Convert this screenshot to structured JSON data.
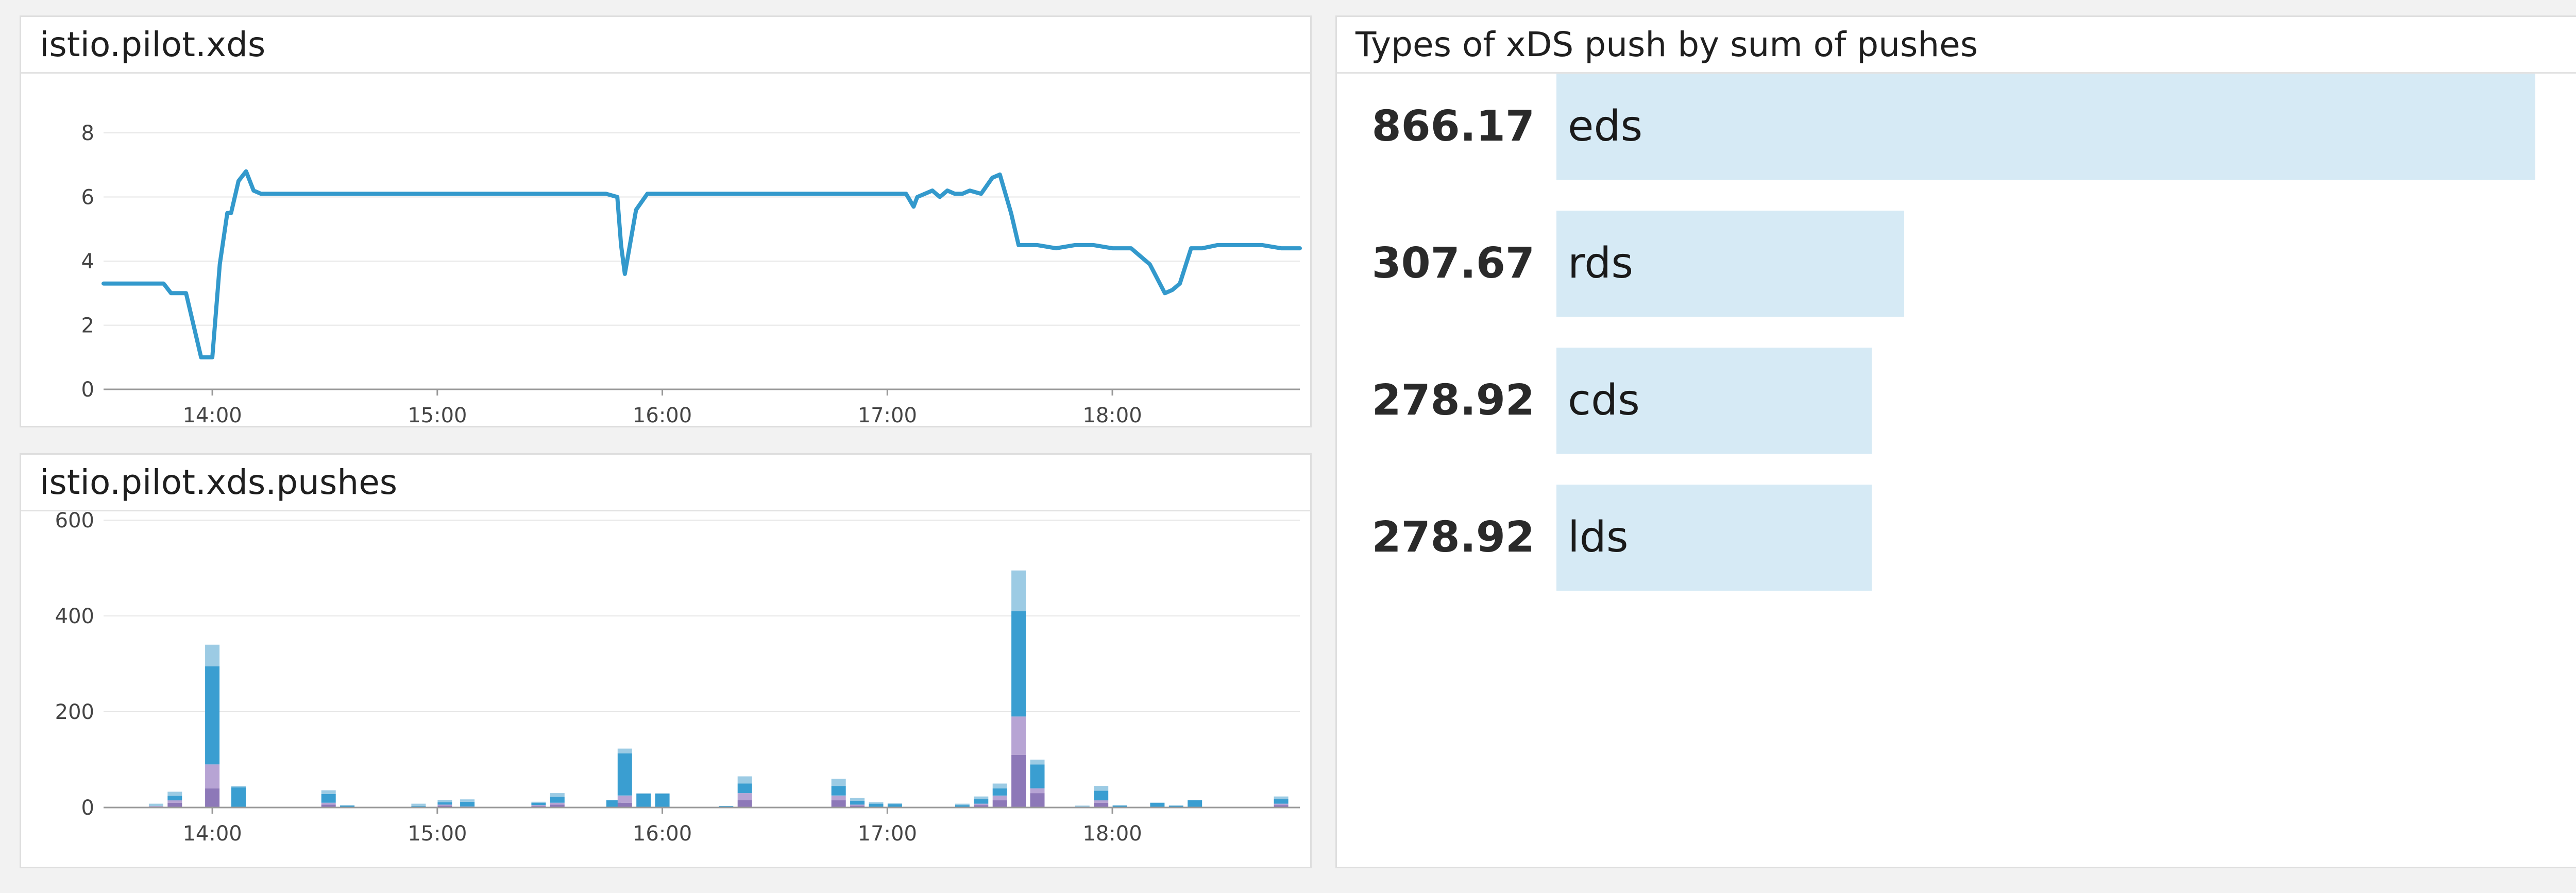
{
  "widgets": {
    "xds": {
      "title": "istio.pilot.xds"
    },
    "pushes": {
      "title": "istio.pilot.xds.pushes"
    },
    "toplist": {
      "title": "Types of xDS push by sum of pushes"
    }
  },
  "colors": {
    "line": "#3399cc",
    "grid": "#e6e6e6",
    "axis": "#999999",
    "bar_light_blue": "#9ccbe4",
    "bar_blue": "#3a9ed1",
    "bar_light_purple": "#b7a4d4",
    "bar_purple": "#8d78b8",
    "toplist_bar": "#d6eaf5"
  },
  "chart_data": [
    {
      "type": "line",
      "title": "istio.pilot.xds",
      "x_range": [
        "13:31",
        "18:50"
      ],
      "xticks": [
        "14:00",
        "15:00",
        "16:00",
        "17:00",
        "18:00"
      ],
      "yticks": [
        "0",
        "2",
        "4",
        "6",
        "8"
      ],
      "ylim": [
        0,
        8
      ],
      "grid": true,
      "series": [
        {
          "x": [
            "13:31",
            "13:47",
            "13:49",
            "13:53",
            "13:57",
            "14:00",
            "14:02",
            "14:04",
            "14:05",
            "14:07",
            "14:09",
            "14:11",
            "14:13",
            "14:15",
            "14:17",
            "14:20",
            "14:25",
            "15:00",
            "15:30",
            "15:45",
            "15:48",
            "15:49",
            "15:50",
            "15:53",
            "15:56",
            "16:00",
            "16:30",
            "17:00",
            "17:05",
            "17:07",
            "17:08",
            "17:10",
            "17:12",
            "17:14",
            "17:16",
            "17:18",
            "17:20",
            "17:22",
            "17:25",
            "17:28",
            "17:30",
            "17:33",
            "17:35",
            "17:40",
            "17:45",
            "17:50",
            "17:55",
            "18:00",
            "18:05",
            "18:10",
            "18:14",
            "18:16",
            "18:18",
            "18:21",
            "18:24",
            "18:28",
            "18:30",
            "18:35",
            "18:40",
            "18:45",
            "18:50"
          ],
          "y": [
            3.3,
            3.3,
            3.0,
            3.0,
            1.0,
            1.0,
            3.9,
            5.5,
            5.5,
            6.5,
            6.8,
            6.2,
            6.1,
            6.1,
            6.1,
            6.1,
            6.1,
            6.1,
            6.1,
            6.1,
            6.0,
            4.5,
            3.6,
            5.6,
            6.1,
            6.1,
            6.1,
            6.1,
            6.1,
            5.7,
            6.0,
            6.1,
            6.2,
            6.0,
            6.2,
            6.1,
            6.1,
            6.2,
            6.1,
            6.6,
            6.7,
            5.5,
            4.5,
            4.5,
            4.4,
            4.5,
            4.5,
            4.4,
            4.4,
            3.9,
            3.0,
            3.1,
            3.3,
            4.4,
            4.4,
            4.5,
            4.5,
            4.5,
            4.5,
            4.4,
            4.4
          ]
        }
      ]
    },
    {
      "type": "bar",
      "title": "istio.pilot.xds.pushes",
      "x_range": [
        "13:31",
        "18:50"
      ],
      "xticks": [
        "14:00",
        "15:00",
        "16:00",
        "17:00",
        "18:00"
      ],
      "yticks": [
        "0",
        "200",
        "400",
        "600"
      ],
      "ylim": [
        0,
        600
      ],
      "stacked": true,
      "grid": true,
      "x": [
        "13:45",
        "13:50",
        "14:00",
        "14:07",
        "14:31",
        "14:36",
        "14:55",
        "15:02",
        "15:08",
        "15:27",
        "15:32",
        "15:47",
        "15:50",
        "15:55",
        "16:00",
        "16:17",
        "16:22",
        "16:47",
        "16:52",
        "16:57",
        "17:02",
        "17:20",
        "17:25",
        "17:30",
        "17:35",
        "17:40",
        "17:52",
        "17:57",
        "18:02",
        "18:12",
        "18:17",
        "18:22",
        "18:45"
      ],
      "series": [
        {
          "color": "#8d78b8",
          "values": [
            2,
            10,
            40,
            0,
            6,
            0,
            0,
            4,
            0,
            3,
            6,
            0,
            10,
            0,
            0,
            1,
            15,
            15,
            4,
            0,
            0,
            0,
            5,
            15,
            110,
            30,
            0,
            10,
            0,
            0,
            0,
            0,
            5
          ]
        },
        {
          "color": "#b7a4d4",
          "values": [
            1,
            5,
            50,
            0,
            4,
            0,
            1,
            2,
            2,
            2,
            4,
            0,
            15,
            0,
            0,
            0,
            15,
            10,
            2,
            0,
            0,
            0,
            3,
            10,
            80,
            10,
            0,
            5,
            0,
            0,
            0,
            0,
            3
          ]
        },
        {
          "color": "#3a9ed1",
          "values": [
            0,
            10,
            205,
            42,
            18,
            4,
            2,
            5,
            10,
            5,
            12,
            15,
            88,
            28,
            28,
            2,
            20,
            20,
            8,
            8,
            7,
            5,
            10,
            15,
            220,
            50,
            0,
            20,
            4,
            10,
            4,
            15,
            10
          ]
        },
        {
          "color": "#9ccbe4",
          "values": [
            5,
            8,
            45,
            3,
            8,
            1,
            5,
            5,
            5,
            2,
            8,
            1,
            10,
            2,
            2,
            0,
            15,
            15,
            6,
            3,
            2,
            3,
            5,
            10,
            85,
            10,
            4,
            10,
            1,
            0,
            0,
            0,
            5
          ]
        }
      ]
    },
    {
      "type": "bar",
      "orientation": "horizontal",
      "title": "Types of xDS push by sum of pushes",
      "categories": [
        "eds",
        "rds",
        "cds",
        "lds"
      ],
      "values": [
        866.17,
        307.67,
        278.92,
        278.92
      ],
      "value_labels": [
        "866.17",
        "307.67",
        "278.92",
        "278.92"
      ]
    }
  ]
}
